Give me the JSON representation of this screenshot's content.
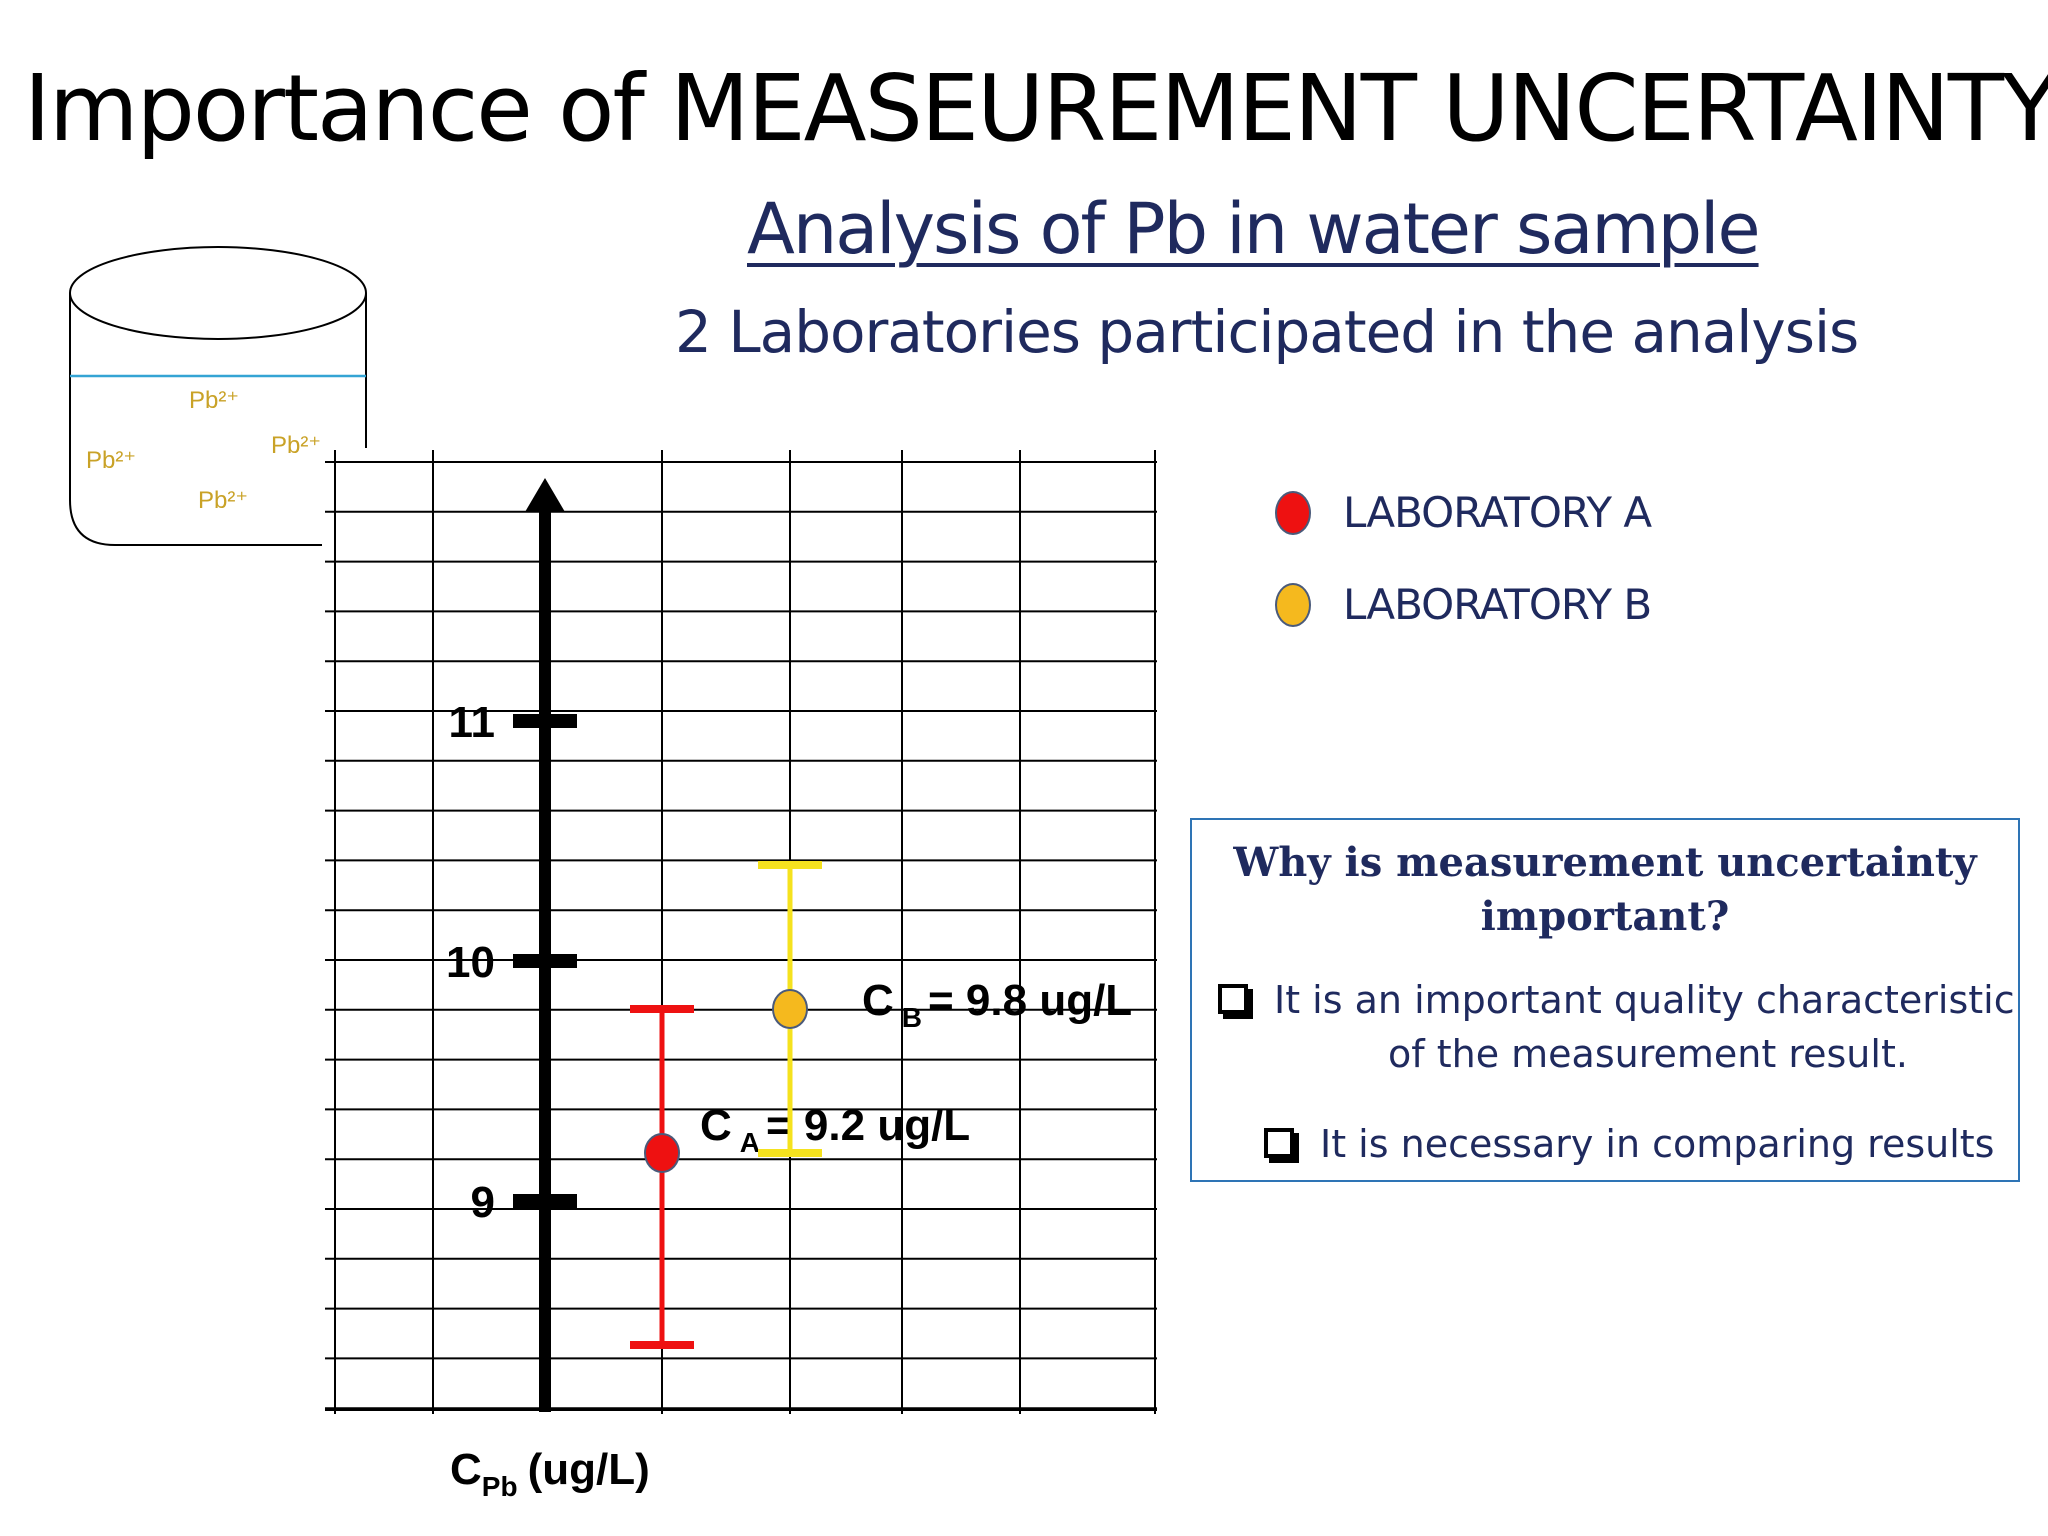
{
  "title": "Importance of MEASEUREMENT UNCERTAINTY",
  "subtitle": "Analysis of Pb in water sample",
  "participants_text": "2 Laboratories participated in the analysis",
  "beaker": {
    "ions": [
      "Pb²⁺",
      "Pb²⁺",
      "Pb²⁺",
      "Pb²⁺"
    ]
  },
  "legend": [
    {
      "label": "LABORATORY A",
      "color": "#ee1111"
    },
    {
      "label": "LABORATORY B",
      "color": "#f5b91e"
    }
  ],
  "info_box": {
    "question": "Why is measurement uncertainty important?",
    "question_line1": "Why is measurement uncertainty",
    "question_line2": "important?",
    "bullets": [
      {
        "line1": "It is an important quality characteristic",
        "line2": "of the measurement result."
      },
      {
        "line1": "It is necessary in comparing results"
      }
    ]
  },
  "chart_data": {
    "type": "scatter",
    "y_axis_label_main": "C",
    "y_axis_label_sub": "Pb",
    "y_axis_unit": "(ug/L)",
    "y_ticks": [
      9,
      10,
      11
    ],
    "ylim": [
      8.0,
      11.9
    ],
    "grid": true,
    "series": [
      {
        "name": "LABORATORY A",
        "label_main": "C",
        "label_sub": "A",
        "label_value": "= 9.2 ug/L",
        "value": 9.2,
        "error_low": 8.4,
        "error_high": 9.8,
        "color": "#ee1111",
        "error_color": "#ee1111"
      },
      {
        "name": "LABORATORY B",
        "label_main": "C",
        "label_sub": "B",
        "label_value": "= 9.8 ug/L",
        "value": 9.8,
        "error_low": 9.2,
        "error_high": 10.4,
        "color": "#f5b91e",
        "error_color": "#f5e21e"
      }
    ]
  }
}
